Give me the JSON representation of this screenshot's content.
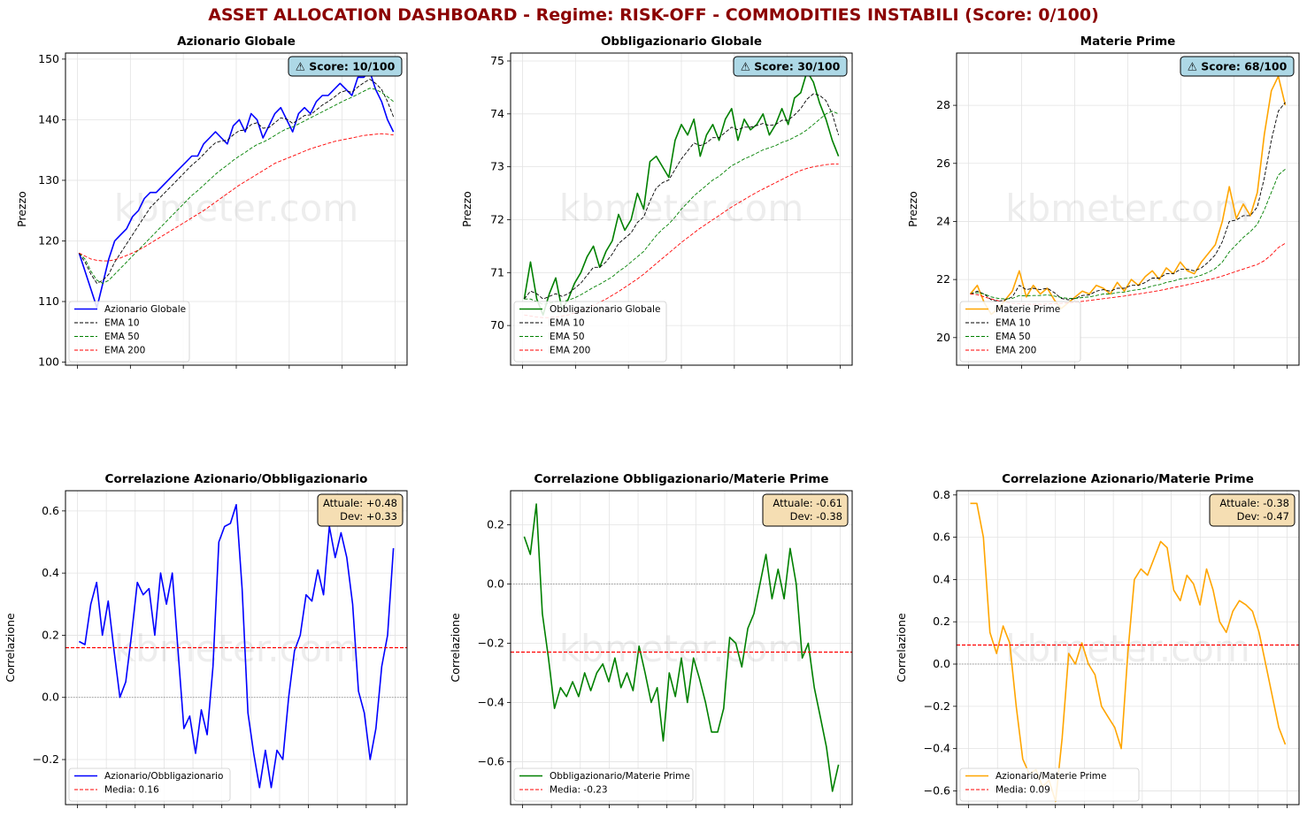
{
  "dashboard": {
    "title": "ASSET ALLOCATION DASHBOARD - Regime: RISK-OFF  - COMMODITIES INSTABILI (Score: 0/100)",
    "watermark": "kbmeter.com",
    "colors": {
      "title": "#8b0000",
      "score_box": "#add8e6",
      "corr_box": "#f5deb3"
    }
  },
  "chart_data": [
    {
      "type": "line",
      "title": "Azionario Globale",
      "ylabel": "Prezzo",
      "xlabel": "",
      "ylim": [
        99.5,
        151
      ],
      "yticks": [
        100,
        110,
        120,
        130,
        140,
        150
      ],
      "score_text": "⚠ Score: 10/100",
      "legend_position": "lower-left",
      "grid": true,
      "series": [
        {
          "name": "Azionario Globale",
          "color": "#0000ff",
          "style": "solid",
          "values": [
            118,
            115,
            112,
            109,
            113,
            117,
            120,
            121,
            122,
            124,
            125,
            127,
            128,
            128,
            129,
            130,
            131,
            132,
            133,
            134,
            134,
            136,
            137,
            138,
            137,
            136,
            139,
            140,
            138,
            141,
            140,
            137,
            139,
            141,
            142,
            140,
            138,
            141,
            142,
            141,
            143,
            144,
            144,
            145,
            146,
            145,
            144,
            147,
            147,
            148,
            145,
            143,
            140,
            138
          ]
        },
        {
          "name": "EMA 10",
          "color": "#000000",
          "style": "dashed",
          "values": [
            118,
            116.5,
            114.5,
            113,
            113.5,
            114.5,
            116.5,
            118,
            119.5,
            121,
            122.5,
            124,
            125.5,
            126.5,
            127.5,
            128.5,
            129.5,
            130.5,
            131.5,
            132.5,
            133.3,
            134.3,
            135.3,
            136.2,
            136.5,
            136.6,
            137.5,
            138.2,
            138.3,
            139.2,
            139.5,
            138.6,
            138.7,
            139.5,
            140.3,
            140.1,
            139.4,
            140,
            140.7,
            140.8,
            141.6,
            142.4,
            143,
            143.7,
            144.5,
            144.8,
            144.5,
            145.4,
            146.1,
            146.7,
            146,
            145,
            143,
            140.5
          ]
        },
        {
          "name": "EMA 50",
          "color": "#008000",
          "style": "dashed",
          "values": [
            118,
            117,
            115,
            113.5,
            113,
            113.5,
            114.5,
            115.5,
            116.5,
            117.5,
            118.5,
            119.5,
            120.5,
            121.5,
            122.5,
            123.5,
            124.5,
            125.5,
            126.5,
            127.5,
            128.3,
            129.2,
            130.1,
            131,
            131.8,
            132.5,
            133.3,
            134,
            134.6,
            135.3,
            135.9,
            136.3,
            136.8,
            137.4,
            138,
            138.5,
            138.8,
            139.3,
            139.8,
            140.3,
            140.8,
            141.3,
            141.8,
            142.3,
            142.8,
            143.3,
            143.7,
            144.2,
            144.7,
            145.2,
            145,
            144.5,
            143.8,
            143
          ]
        },
        {
          "name": "EMA 200",
          "color": "#ff0000",
          "style": "dashed",
          "values": [
            118,
            117.5,
            117,
            116.8,
            116.7,
            116.7,
            116.9,
            117.2,
            117.6,
            118,
            118.5,
            119,
            119.6,
            120.2,
            120.8,
            121.4,
            122,
            122.6,
            123.2,
            123.8,
            124.4,
            125,
            125.7,
            126.4,
            127.1,
            127.8,
            128.5,
            129.2,
            129.8,
            130.4,
            131,
            131.6,
            132.2,
            132.8,
            133.2,
            133.6,
            134,
            134.4,
            134.8,
            135.2,
            135.5,
            135.8,
            136.1,
            136.4,
            136.6,
            136.8,
            137,
            137.2,
            137.4,
            137.5,
            137.6,
            137.7,
            137.6,
            137.5
          ]
        }
      ]
    },
    {
      "type": "line",
      "title": "Obbligazionario Globale",
      "ylabel": "Prezzo",
      "xlabel": "",
      "ylim": [
        69.25,
        75.15
      ],
      "yticks": [
        70,
        71,
        72,
        73,
        74,
        75
      ],
      "score_text": "⚠ Score: 30/100",
      "legend_position": "lower-left",
      "grid": true,
      "series": [
        {
          "name": "Obbligazionario Globale",
          "color": "#008000",
          "style": "solid",
          "values": [
            70.5,
            71.2,
            70.5,
            70.2,
            70.6,
            70.9,
            70.3,
            70.5,
            70.8,
            71.0,
            71.3,
            71.5,
            71.1,
            71.4,
            71.6,
            72.1,
            71.8,
            72.0,
            72.5,
            72.2,
            73.1,
            73.2,
            73.0,
            72.8,
            73.5,
            73.8,
            73.6,
            73.9,
            73.2,
            73.6,
            73.8,
            73.5,
            73.9,
            74.1,
            73.5,
            73.9,
            73.7,
            73.8,
            74.0,
            73.6,
            73.8,
            74.1,
            73.8,
            74.3,
            74.4,
            74.8,
            74.6,
            74.2,
            73.9,
            73.5,
            73.2
          ]
        },
        {
          "name": "EMA 10",
          "color": "#000000",
          "style": "dashed",
          "values": [
            70.5,
            70.65,
            70.6,
            70.5,
            70.55,
            70.6,
            70.55,
            70.6,
            70.7,
            70.8,
            70.95,
            71.1,
            71.1,
            71.2,
            71.35,
            71.55,
            71.65,
            71.75,
            71.95,
            72.05,
            72.35,
            72.6,
            72.7,
            72.75,
            72.95,
            73.15,
            73.3,
            73.45,
            73.4,
            73.45,
            73.55,
            73.55,
            73.65,
            73.75,
            73.7,
            73.75,
            73.75,
            73.78,
            73.82,
            73.78,
            73.8,
            73.88,
            73.88,
            73.98,
            74.1,
            74.28,
            74.38,
            74.35,
            74.25,
            74.0,
            73.6
          ]
        },
        {
          "name": "EMA 50",
          "color": "#008000",
          "style": "dashed",
          "values": [
            70.5,
            70.5,
            70.45,
            70.4,
            70.42,
            70.45,
            70.45,
            70.48,
            70.52,
            70.58,
            70.65,
            70.72,
            70.78,
            70.85,
            70.92,
            71.02,
            71.1,
            71.2,
            71.3,
            71.4,
            71.55,
            71.7,
            71.82,
            71.92,
            72.05,
            72.2,
            72.32,
            72.45,
            72.55,
            72.65,
            72.75,
            72.82,
            72.92,
            73.02,
            73.08,
            73.15,
            73.2,
            73.26,
            73.32,
            73.36,
            73.4,
            73.46,
            73.5,
            73.56,
            73.62,
            73.7,
            73.8,
            73.9,
            74.0,
            74.05,
            74.0
          ]
        },
        {
          "name": "EMA 200",
          "color": "#ff0000",
          "style": "dashed",
          "values": [
            70.2,
            70.18,
            70.16,
            70.15,
            70.15,
            70.16,
            70.18,
            70.2,
            70.24,
            70.28,
            70.33,
            70.38,
            70.44,
            70.5,
            70.57,
            70.64,
            70.72,
            70.8,
            70.88,
            70.97,
            71.07,
            71.17,
            71.27,
            71.37,
            71.47,
            71.57,
            71.66,
            71.75,
            71.84,
            71.92,
            72.0,
            72.08,
            72.16,
            72.24,
            72.31,
            72.38,
            72.45,
            72.52,
            72.58,
            72.64,
            72.7,
            72.76,
            72.82,
            72.88,
            72.93,
            72.97,
            73.0,
            73.02,
            73.04,
            73.05,
            73.05
          ]
        }
      ]
    },
    {
      "type": "line",
      "title": "Materie Prime",
      "ylabel": "Prezzo",
      "xlabel": "",
      "ylim": [
        19.05,
        29.8
      ],
      "yticks": [
        20,
        22,
        24,
        26,
        28
      ],
      "score_text": "⚠ Score: 68/100",
      "legend_position": "lower-left",
      "grid": true,
      "series": [
        {
          "name": "Materie Prime",
          "color": "#ffa500",
          "style": "solid",
          "values": [
            21.5,
            21.8,
            21.2,
            20.8,
            21.0,
            21.3,
            21.6,
            22.3,
            21.4,
            21.8,
            21.5,
            21.7,
            21.3,
            21.0,
            21.2,
            21.4,
            21.6,
            21.5,
            21.8,
            21.7,
            21.5,
            21.9,
            21.6,
            22.0,
            21.8,
            22.1,
            22.3,
            22.0,
            22.4,
            22.2,
            22.6,
            22.3,
            22.2,
            22.6,
            22.9,
            23.2,
            24.0,
            25.2,
            24.1,
            24.6,
            24.2,
            25.0,
            27.0,
            28.5,
            29.0,
            28.0
          ]
        },
        {
          "name": "EMA 10",
          "color": "#000000",
          "style": "dashed",
          "values": [
            21.5,
            21.6,
            21.5,
            21.3,
            21.25,
            21.3,
            21.4,
            21.8,
            21.65,
            21.7,
            21.65,
            21.7,
            21.55,
            21.35,
            21.3,
            21.35,
            21.45,
            21.47,
            21.6,
            21.65,
            21.6,
            21.7,
            21.7,
            21.8,
            21.8,
            21.9,
            22.05,
            22.05,
            22.2,
            22.2,
            22.35,
            22.35,
            22.3,
            22.4,
            22.6,
            22.85,
            23.3,
            24.0,
            24.05,
            24.2,
            24.2,
            24.5,
            25.5,
            26.8,
            27.8,
            28.1
          ]
        },
        {
          "name": "EMA 50",
          "color": "#008000",
          "style": "dashed",
          "values": [
            21.5,
            21.55,
            21.5,
            21.4,
            21.35,
            21.33,
            21.35,
            21.45,
            21.43,
            21.45,
            21.45,
            21.47,
            21.43,
            21.38,
            21.35,
            21.35,
            21.38,
            21.4,
            21.45,
            21.5,
            21.5,
            21.55,
            21.57,
            21.62,
            21.65,
            21.7,
            21.78,
            21.82,
            21.9,
            21.95,
            22.02,
            22.05,
            22.08,
            22.15,
            22.25,
            22.38,
            22.6,
            22.95,
            23.2,
            23.45,
            23.65,
            23.9,
            24.4,
            25.0,
            25.6,
            25.8
          ]
        },
        {
          "name": "EMA 200",
          "color": "#ff0000",
          "style": "dashed",
          "values": [
            21.5,
            21.48,
            21.4,
            21.33,
            21.27,
            21.22,
            21.18,
            21.17,
            21.15,
            21.15,
            21.15,
            21.16,
            21.17,
            21.18,
            21.2,
            21.22,
            21.25,
            21.28,
            21.31,
            21.34,
            21.37,
            21.4,
            21.43,
            21.47,
            21.5,
            21.54,
            21.58,
            21.62,
            21.67,
            21.72,
            21.77,
            21.82,
            21.87,
            21.93,
            21.99,
            22.05,
            22.12,
            22.2,
            22.28,
            22.36,
            22.44,
            22.52,
            22.65,
            22.85,
            23.1,
            23.25
          ]
        }
      ]
    },
    {
      "type": "line",
      "title": "Correlazione Azionario/Obbligazionario",
      "ylabel": "Correlazione",
      "xlabel": "",
      "ylim": [
        -0.345,
        0.665
      ],
      "yticks": [
        -0.2,
        0.0,
        0.2,
        0.4,
        0.6
      ],
      "info_text": [
        "Attuale: +0.48",
        "Dev: +0.33"
      ],
      "mean": 0.16,
      "legend_position": "lower-left",
      "grid": true,
      "series": [
        {
          "name": "Azionario/Obbligazionario",
          "color": "#0000ff",
          "style": "solid",
          "values": [
            0.18,
            0.17,
            0.3,
            0.37,
            0.2,
            0.31,
            0.15,
            0.0,
            0.05,
            0.2,
            0.37,
            0.33,
            0.35,
            0.2,
            0.4,
            0.3,
            0.4,
            0.15,
            -0.1,
            -0.06,
            -0.18,
            -0.04,
            -0.12,
            0.1,
            0.5,
            0.55,
            0.56,
            0.62,
            0.35,
            -0.05,
            -0.18,
            -0.29,
            -0.17,
            -0.29,
            -0.17,
            -0.2,
            0.0,
            0.15,
            0.2,
            0.33,
            0.31,
            0.41,
            0.33,
            0.55,
            0.45,
            0.53,
            0.45,
            0.3,
            0.02,
            -0.05,
            -0.2,
            -0.1,
            0.1,
            0.2,
            0.48
          ]
        },
        {
          "name": "Media: 0.16",
          "color": "#ff0000",
          "style": "dashed",
          "values": [
            0.16
          ]
        }
      ]
    },
    {
      "type": "line",
      "title": "Correlazione Obbligazionario/Materie Prime",
      "ylabel": "Correlazione",
      "xlabel": "",
      "ylim": [
        -0.745,
        0.315
      ],
      "yticks": [
        -0.6,
        -0.4,
        -0.2,
        0.0,
        0.2
      ],
      "info_text": [
        "Attuale: -0.61",
        "Dev: -0.38"
      ],
      "mean": -0.23,
      "legend_position": "lower-left",
      "grid": true,
      "series": [
        {
          "name": "Obbligazionario/Materie Prime",
          "color": "#008000",
          "style": "solid",
          "values": [
            0.16,
            0.1,
            0.27,
            -0.1,
            -0.25,
            -0.42,
            -0.35,
            -0.38,
            -0.33,
            -0.38,
            -0.3,
            -0.36,
            -0.3,
            -0.27,
            -0.33,
            -0.25,
            -0.35,
            -0.3,
            -0.36,
            -0.21,
            -0.3,
            -0.4,
            -0.35,
            -0.53,
            -0.3,
            -0.38,
            -0.25,
            -0.4,
            -0.25,
            -0.32,
            -0.4,
            -0.5,
            -0.5,
            -0.42,
            -0.18,
            -0.2,
            -0.28,
            -0.15,
            -0.1,
            0.0,
            0.1,
            -0.05,
            0.05,
            -0.05,
            0.12,
            0.0,
            -0.25,
            -0.2,
            -0.35,
            -0.45,
            -0.55,
            -0.7,
            -0.61
          ]
        },
        {
          "name": "Media: -0.23",
          "color": "#ff0000",
          "style": "dashed",
          "values": [
            -0.23
          ]
        }
      ]
    },
    {
      "type": "line",
      "title": "Correlazione Azionario/Materie Prime",
      "ylabel": "Correlazione",
      "xlabel": "",
      "ylim": [
        -0.665,
        0.82
      ],
      "yticks": [
        -0.6,
        -0.4,
        -0.2,
        0.0,
        0.2,
        0.4,
        0.6,
        0.8
      ],
      "info_text": [
        "Attuale: -0.38",
        "Dev: -0.47"
      ],
      "mean": 0.09,
      "legend_position": "lower-left",
      "grid": true,
      "series": [
        {
          "name": "Azionario/Materie Prime",
          "color": "#ffa500",
          "style": "solid",
          "values": [
            0.76,
            0.76,
            0.6,
            0.15,
            0.05,
            0.18,
            0.1,
            -0.2,
            -0.45,
            -0.52,
            -0.5,
            -0.58,
            -0.55,
            -0.65,
            -0.35,
            0.05,
            0.0,
            0.1,
            0.0,
            -0.05,
            -0.2,
            -0.25,
            -0.3,
            -0.4,
            0.05,
            0.4,
            0.45,
            0.42,
            0.5,
            0.58,
            0.55,
            0.35,
            0.3,
            0.42,
            0.38,
            0.28,
            0.45,
            0.35,
            0.2,
            0.15,
            0.25,
            0.3,
            0.28,
            0.25,
            0.15,
            0.0,
            -0.15,
            -0.3,
            -0.38
          ]
        },
        {
          "name": "Media: 0.09",
          "color": "#ff0000",
          "style": "dashed",
          "values": [
            0.09
          ]
        }
      ]
    }
  ]
}
